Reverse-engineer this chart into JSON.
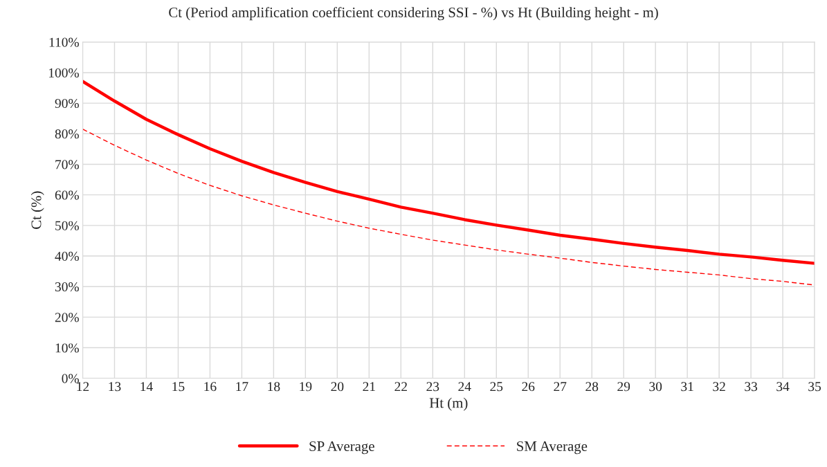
{
  "chart_data": {
    "type": "line",
    "title": "Ct (Period amplification coefficient considering SSI - %) vs Ht (Building height - m)",
    "xlabel": "Ht (m)",
    "ylabel": "Ct (%)",
    "x": [
      12,
      13,
      14,
      15,
      16,
      17,
      18,
      19,
      20,
      21,
      22,
      23,
      24,
      25,
      26,
      27,
      28,
      29,
      30,
      31,
      32,
      33,
      34,
      35
    ],
    "series": [
      {
        "name": "SP Average",
        "color": "#ff0000",
        "line_style": "solid",
        "values": [
          97.1,
          90.7,
          84.7,
          79.7,
          75.1,
          71.0,
          67.3,
          64.1,
          61.1,
          58.6,
          56.0,
          54.0,
          51.9,
          50.1,
          48.5,
          46.8,
          45.5,
          44.1,
          42.9,
          41.8,
          40.6,
          39.7,
          38.6,
          37.6
        ]
      },
      {
        "name": "SM Average",
        "color": "#ff0000",
        "line_style": "dashed",
        "values": [
          81.5,
          76.2,
          71.4,
          67.0,
          63.1,
          59.7,
          56.7,
          54.0,
          51.4,
          49.1,
          47.1,
          45.2,
          43.6,
          42.0,
          40.6,
          39.3,
          37.9,
          36.7,
          35.6,
          34.7,
          33.8,
          32.6,
          31.7,
          30.5
        ]
      }
    ],
    "xlim": [
      12,
      35
    ],
    "xticks": [
      12,
      13,
      14,
      15,
      16,
      17,
      18,
      19,
      20,
      21,
      22,
      23,
      24,
      25,
      26,
      27,
      28,
      29,
      30,
      31,
      32,
      33,
      34,
      35
    ],
    "ylim": [
      0,
      110
    ],
    "yticks": [
      {
        "value": 0,
        "label": "0%"
      },
      {
        "value": 10,
        "label": "10%"
      },
      {
        "value": 20,
        "label": "20%"
      },
      {
        "value": 30,
        "label": "30%"
      },
      {
        "value": 40,
        "label": "40%"
      },
      {
        "value": 50,
        "label": "50%"
      },
      {
        "value": 60,
        "label": "60%"
      },
      {
        "value": 70,
        "label": "70%"
      },
      {
        "value": 80,
        "label": "80%"
      },
      {
        "value": 90,
        "label": "90%"
      },
      {
        "value": 100,
        "label": "100%"
      },
      {
        "value": 110,
        "label": "110%"
      }
    ],
    "grid": true,
    "legend": "bottom",
    "marker": "none"
  }
}
